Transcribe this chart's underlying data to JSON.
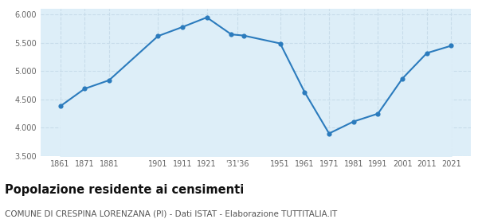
{
  "years": [
    1861,
    1871,
    1881,
    1901,
    1911,
    1921,
    1931,
    1936,
    1951,
    1961,
    1971,
    1981,
    1991,
    2001,
    2011,
    2021
  ],
  "population": [
    4380,
    4690,
    4840,
    5620,
    5780,
    5950,
    5650,
    5630,
    5490,
    4630,
    3900,
    4110,
    4250,
    4870,
    5320,
    5450
  ],
  "ylim": [
    3500,
    6100
  ],
  "yticks": [
    3500,
    4000,
    4500,
    5000,
    5500,
    6000
  ],
  "line_color": "#2B7BBD",
  "fill_color": "#ddeef8",
  "marker_color": "#2B7BBD",
  "background_color": "#ffffff",
  "grid_color": "#c8dcea",
  "title": "Popolazione residente ai censimenti",
  "subtitle": "COMUNE DI CRESPINA LORENZANA (PI) - Dati ISTAT - Elaborazione TUTTITALIA.IT",
  "title_fontsize": 10.5,
  "subtitle_fontsize": 7.5
}
